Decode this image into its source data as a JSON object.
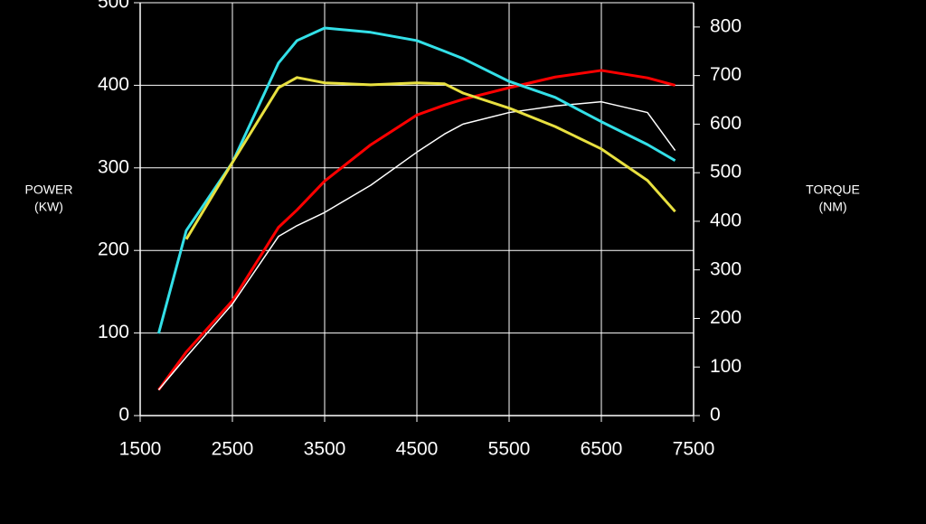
{
  "chart_data": {
    "type": "line",
    "ylabel": [
      "POWER",
      "(KW)"
    ],
    "y2label": [
      "TORQUE",
      "(NM)"
    ],
    "x": [
      1700,
      2000,
      2500,
      3000,
      3200,
      3500,
      4000,
      4500,
      4800,
      5000,
      5500,
      6000,
      6500,
      7000,
      7300
    ],
    "series": [
      {
        "color": "#ff0000",
        "values": [
          31,
          77,
          139,
          228,
          249,
          284,
          328,
          364,
          376,
          383,
          397,
          410,
          418,
          409,
          400
        ]
      },
      {
        "color": "#ffffff",
        "values": [
          31,
          71,
          135,
          217,
          230,
          246,
          279,
          319,
          341,
          353,
          367,
          375,
          380,
          367,
          321
        ]
      },
      {
        "color": "#33e0e8",
        "axis": "y2",
        "values": [
          169,
          381,
          521,
          726,
          772,
          798,
          789,
          772,
          750,
          735,
          688,
          655,
          605,
          558,
          525
        ]
      },
      {
        "color": "#e8e040",
        "axis": "y2",
        "values": [
          null,
          363,
          521,
          675,
          696,
          685,
          681,
          685,
          683,
          664,
          633,
          595,
          549,
          484,
          420
        ]
      }
    ],
    "xlim": [
      1500,
      7500
    ],
    "xticks": [
      1500,
      2500,
      3500,
      4500,
      5500,
      6500,
      7500
    ],
    "ylim": [
      0,
      500
    ],
    "yticks": [
      0,
      100,
      200,
      300,
      400,
      500
    ],
    "y2lim": [
      0,
      850
    ],
    "y2ticks": [
      0,
      100,
      200,
      300,
      400,
      500,
      600,
      700,
      800
    ],
    "grid": true
  }
}
